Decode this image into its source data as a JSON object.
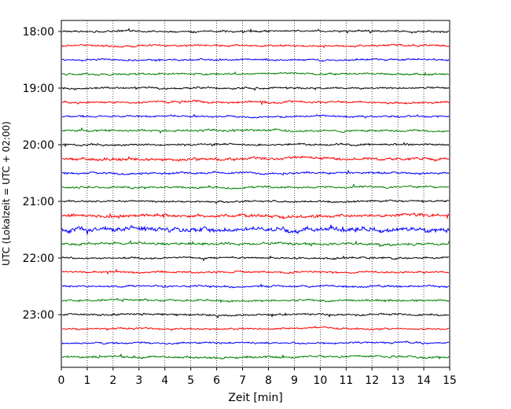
{
  "chart_data": {
    "type": "line",
    "title": "",
    "xlabel": "Zeit  [min]",
    "ylabel": "UTC (Lokalzeit = UTC + 02:00)",
    "xlim": [
      0,
      15
    ],
    "x_ticks": [
      "0",
      "1",
      "2",
      "3",
      "4",
      "5",
      "6",
      "7",
      "8",
      "9",
      "10",
      "11",
      "12",
      "13",
      "14",
      "15"
    ],
    "y_ticks": [
      "18:00",
      "19:00",
      "20:00",
      "21:00",
      "22:00",
      "23:00"
    ],
    "grid": "vertical-dotted",
    "trace_interval_min": 15,
    "trace_colors": [
      "#000000",
      "#ff0000",
      "#0000ff",
      "#008000"
    ],
    "traces": [
      {
        "start": "18:00",
        "color": "#000000",
        "amplitude": 0.08
      },
      {
        "start": "18:15",
        "color": "#ff0000",
        "amplitude": 0.08
      },
      {
        "start": "18:30",
        "color": "#0000ff",
        "amplitude": 0.08
      },
      {
        "start": "18:45",
        "color": "#008000",
        "amplitude": 0.08
      },
      {
        "start": "19:00",
        "color": "#000000",
        "amplitude": 0.08
      },
      {
        "start": "19:15",
        "color": "#ff0000",
        "amplitude": 0.09
      },
      {
        "start": "19:30",
        "color": "#0000ff",
        "amplitude": 0.08
      },
      {
        "start": "19:45",
        "color": "#008000",
        "amplitude": 0.09
      },
      {
        "start": "20:00",
        "color": "#000000",
        "amplitude": 0.08
      },
      {
        "start": "20:15",
        "color": "#ff0000",
        "amplitude": 0.12
      },
      {
        "start": "20:30",
        "color": "#0000ff",
        "amplitude": 0.09
      },
      {
        "start": "20:45",
        "color": "#008000",
        "amplitude": 0.09
      },
      {
        "start": "21:00",
        "color": "#000000",
        "amplitude": 0.08
      },
      {
        "start": "21:15",
        "color": "#ff0000",
        "amplitude": 0.13
      },
      {
        "start": "21:30",
        "color": "#0000ff",
        "amplitude": 0.2
      },
      {
        "start": "21:45",
        "color": "#008000",
        "amplitude": 0.11
      },
      {
        "start": "22:00",
        "color": "#000000",
        "amplitude": 0.08
      },
      {
        "start": "22:15",
        "color": "#ff0000",
        "amplitude": 0.08
      },
      {
        "start": "22:30",
        "color": "#0000ff",
        "amplitude": 0.08
      },
      {
        "start": "22:45",
        "color": "#008000",
        "amplitude": 0.09
      },
      {
        "start": "23:00",
        "color": "#000000",
        "amplitude": 0.08
      },
      {
        "start": "23:15",
        "color": "#ff0000",
        "amplitude": 0.08
      },
      {
        "start": "23:30",
        "color": "#0000ff",
        "amplitude": 0.08
      },
      {
        "start": "23:45",
        "color": "#008000",
        "amplitude": 0.09
      }
    ]
  }
}
